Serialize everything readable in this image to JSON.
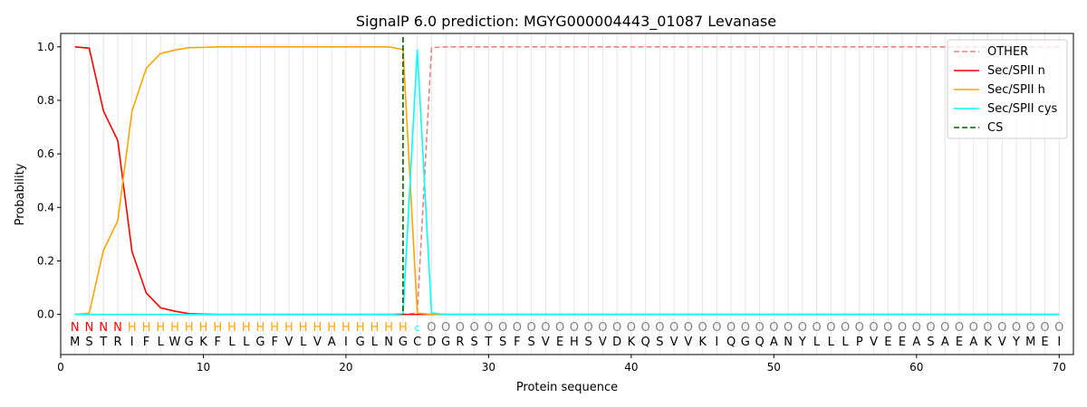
{
  "chart_data": {
    "type": "line",
    "title": "SignalP 6.0 prediction: MGYG000004443_01087 Levanase",
    "xlabel": "Protein sequence",
    "ylabel": "Probability",
    "xlim": [
      0,
      71
    ],
    "ylim": [
      -0.15,
      1.05
    ],
    "xticks": [
      0,
      10,
      20,
      30,
      40,
      50,
      60,
      70
    ],
    "yticks": [
      0.0,
      0.2,
      0.4,
      0.6,
      0.8,
      1.0
    ],
    "legend_position": "top-right",
    "sequence": "MSTRIFLWGKFLLGFVLVAIGLNGCDGRSTSFSVEHSVDKQSVVKIQGQANYLLLPVEEASAEAKVYMEI",
    "labels": "NNNNHHHHHHHHHHHHHHHHHHHHcOOOOOOOOOOOOOOOOOOOOOOOOOOOOOOOOOOOOOOOOOOOOO",
    "label_colors": {
      "N": "#ff0000",
      "H": "#ffa500",
      "c": "#00ffff",
      "O": "#808080"
    },
    "cs_position": 24,
    "series": [
      {
        "name": "OTHER",
        "color": "#f08080",
        "dash": true,
        "values": [
          0,
          0,
          0,
          0,
          0,
          0,
          0,
          0,
          0,
          0,
          0,
          0,
          0,
          0,
          0,
          0,
          0,
          0,
          0,
          0,
          0,
          0,
          0,
          0,
          0.005,
          0.997,
          1,
          1,
          1,
          1,
          1,
          1,
          1,
          1,
          1,
          1,
          1,
          1,
          1,
          1,
          1,
          1,
          1,
          1,
          1,
          1,
          1,
          1,
          1,
          1,
          1,
          1,
          1,
          1,
          1,
          1,
          1,
          1,
          1,
          1,
          1,
          1,
          1,
          1,
          1,
          1,
          1,
          1,
          1,
          1
        ]
      },
      {
        "name": "Sec/SPII n",
        "color": "#ff0000",
        "dash": false,
        "values": [
          1.0,
          0.995,
          0.76,
          0.65,
          0.235,
          0.08,
          0.025,
          0.012,
          0.003,
          0.001,
          0,
          0,
          0,
          0,
          0,
          0,
          0,
          0,
          0,
          0,
          0,
          0,
          0,
          0,
          0,
          0,
          0,
          0,
          0,
          0,
          0,
          0,
          0,
          0,
          0,
          0,
          0,
          0,
          0,
          0,
          0,
          0,
          0,
          0,
          0,
          0,
          0,
          0,
          0,
          0,
          0,
          0,
          0,
          0,
          0,
          0,
          0,
          0,
          0,
          0,
          0,
          0,
          0,
          0,
          0,
          0,
          0,
          0,
          0,
          0
        ]
      },
      {
        "name": "Sec/SPII h",
        "color": "#ffa500",
        "dash": false,
        "values": [
          0,
          0.005,
          0.24,
          0.35,
          0.76,
          0.92,
          0.975,
          0.988,
          0.997,
          0.998,
          1,
          1,
          1,
          1,
          1,
          1,
          1,
          1,
          1,
          1,
          1,
          1,
          1,
          0.99,
          0.005,
          0,
          0,
          0,
          0,
          0,
          0,
          0,
          0,
          0,
          0,
          0,
          0,
          0,
          0,
          0,
          0,
          0,
          0,
          0,
          0,
          0,
          0,
          0,
          0,
          0,
          0,
          0,
          0,
          0,
          0,
          0,
          0,
          0,
          0,
          0,
          0,
          0,
          0,
          0,
          0,
          0,
          0,
          0,
          0,
          0
        ]
      },
      {
        "name": "Sec/SPII cys",
        "color": "#00ffff",
        "dash": false,
        "values": [
          0,
          0,
          0,
          0,
          0,
          0,
          0,
          0,
          0,
          0,
          0,
          0,
          0,
          0,
          0,
          0,
          0,
          0,
          0,
          0,
          0,
          0,
          0,
          0.003,
          0.99,
          0.005,
          0,
          0,
          0,
          0,
          0,
          0,
          0,
          0,
          0,
          0,
          0,
          0,
          0,
          0,
          0,
          0,
          0,
          0,
          0,
          0,
          0,
          0,
          0,
          0,
          0,
          0,
          0,
          0,
          0,
          0,
          0,
          0,
          0,
          0,
          0,
          0,
          0,
          0,
          0,
          0,
          0,
          0,
          0,
          0
        ]
      },
      {
        "name": "CS",
        "color": "#006400",
        "dash": true,
        "values": []
      }
    ]
  }
}
